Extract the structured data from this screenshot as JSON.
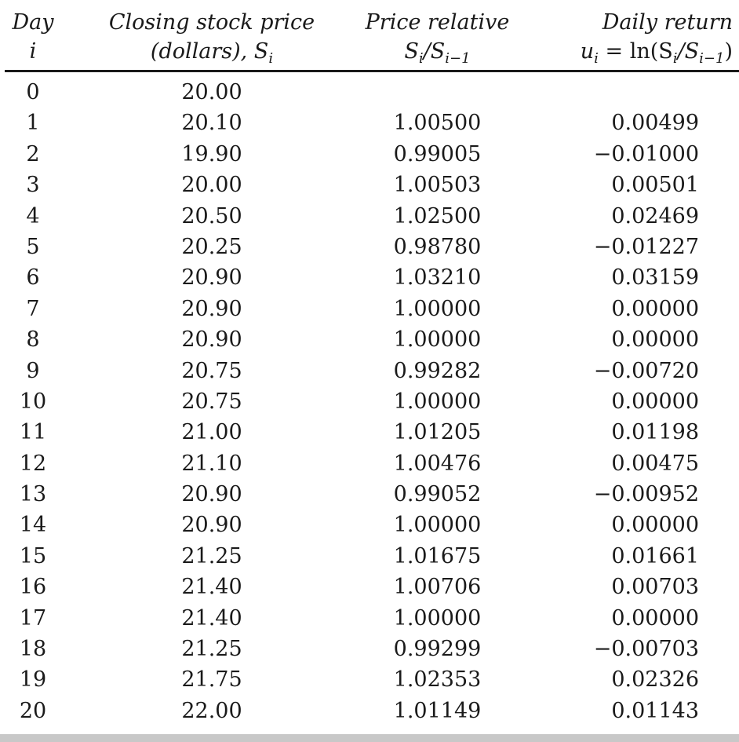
{
  "headers": {
    "day": [
      "Day",
      "i"
    ],
    "price": [
      "Closing stock price",
      "(dollars), S",
      "i"
    ],
    "relative": [
      "Price relative",
      "S",
      "i",
      "/S",
      "i−1"
    ],
    "return": [
      "Daily return",
      "u",
      "i",
      " = ",
      "ln(S",
      "i",
      "/S",
      "i−1",
      ")"
    ]
  },
  "rows": [
    {
      "day": "0",
      "price": "20.00",
      "relative": "",
      "ret": ""
    },
    {
      "day": "1",
      "price": "20.10",
      "relative": "1.00500",
      "ret": "0.00499"
    },
    {
      "day": "2",
      "price": "19.90",
      "relative": "0.99005",
      "ret": "−0.01000"
    },
    {
      "day": "3",
      "price": "20.00",
      "relative": "1.00503",
      "ret": "0.00501"
    },
    {
      "day": "4",
      "price": "20.50",
      "relative": "1.02500",
      "ret": "0.02469"
    },
    {
      "day": "5",
      "price": "20.25",
      "relative": "0.98780",
      "ret": "−0.01227"
    },
    {
      "day": "6",
      "price": "20.90",
      "relative": "1.03210",
      "ret": "0.03159"
    },
    {
      "day": "7",
      "price": "20.90",
      "relative": "1.00000",
      "ret": "0.00000"
    },
    {
      "day": "8",
      "price": "20.90",
      "relative": "1.00000",
      "ret": "0.00000"
    },
    {
      "day": "9",
      "price": "20.75",
      "relative": "0.99282",
      "ret": "−0.00720"
    },
    {
      "day": "10",
      "price": "20.75",
      "relative": "1.00000",
      "ret": "0.00000"
    },
    {
      "day": "11",
      "price": "21.00",
      "relative": "1.01205",
      "ret": "0.01198"
    },
    {
      "day": "12",
      "price": "21.10",
      "relative": "1.00476",
      "ret": "0.00475"
    },
    {
      "day": "13",
      "price": "20.90",
      "relative": "0.99052",
      "ret": "−0.00952"
    },
    {
      "day": "14",
      "price": "20.90",
      "relative": "1.00000",
      "ret": "0.00000"
    },
    {
      "day": "15",
      "price": "21.25",
      "relative": "1.01675",
      "ret": "0.01661"
    },
    {
      "day": "16",
      "price": "21.40",
      "relative": "1.00706",
      "ret": "0.00703"
    },
    {
      "day": "17",
      "price": "21.40",
      "relative": "1.00000",
      "ret": "0.00000"
    },
    {
      "day": "18",
      "price": "21.25",
      "relative": "0.99299",
      "ret": "−0.00703"
    },
    {
      "day": "19",
      "price": "21.75",
      "relative": "1.02353",
      "ret": "0.02326"
    },
    {
      "day": "20",
      "price": "22.00",
      "relative": "1.01149",
      "ret": "0.01143"
    }
  ]
}
